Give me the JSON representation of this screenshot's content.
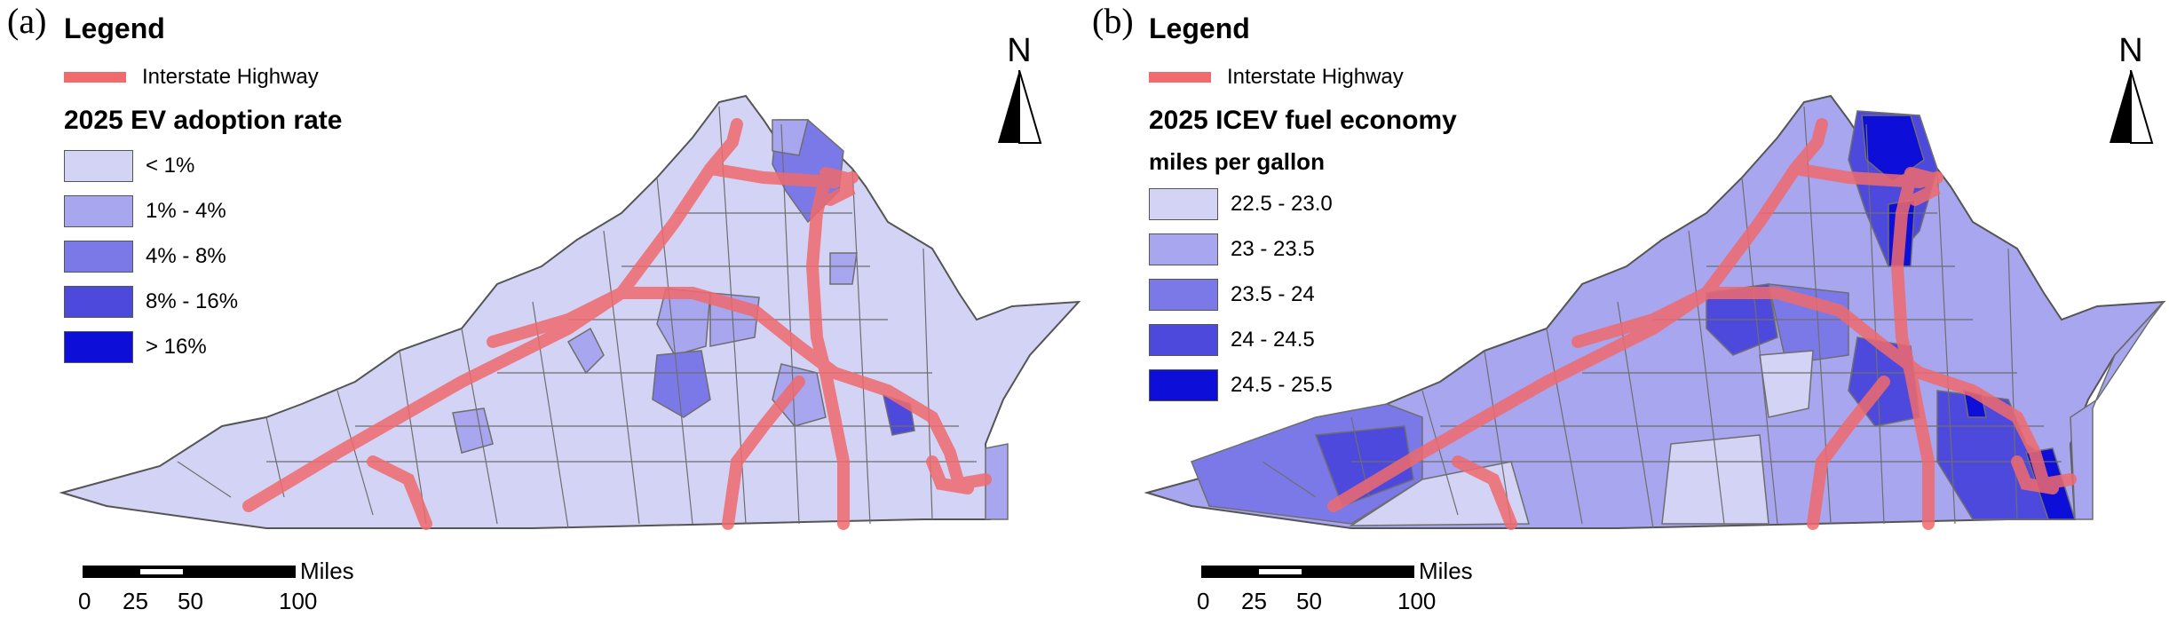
{
  "panels": [
    {
      "label": "(a)",
      "legend": {
        "title": "Legend",
        "highway_label": "Interstate Highway",
        "section_title": "2025 EV adoption rate",
        "subtitle": "",
        "classes": [
          {
            "label": "< 1%",
            "color": "#d3d3f6"
          },
          {
            "label": "1% - 4%",
            "color": "#a7a6ef"
          },
          {
            "label": "4% - 8%",
            "color": "#7b79e7"
          },
          {
            "label": "8% - 16%",
            "color": "#4e49dd"
          },
          {
            "label": "> 16%",
            "color": "#0d0ed8"
          }
        ]
      },
      "north_label": "N",
      "scale": {
        "unit": "Miles",
        "ticks": [
          "0",
          "25",
          "50",
          "100"
        ]
      }
    },
    {
      "label": "(b)",
      "legend": {
        "title": "Legend",
        "highway_label": "Interstate Highway",
        "section_title": "2025 ICEV fuel economy",
        "subtitle": "miles per gallon",
        "classes": [
          {
            "label": "22.5 - 23.0",
            "color": "#d3d3f6"
          },
          {
            "label": "23 - 23.5",
            "color": "#a7a6ef"
          },
          {
            "label": "23.5 - 24",
            "color": "#7b79e7"
          },
          {
            "label": "24 - 24.5",
            "color": "#4e49dd"
          },
          {
            "label": "24.5 - 25.5",
            "color": "#0d0ed8"
          }
        ]
      },
      "north_label": "N",
      "scale": {
        "unit": "Miles",
        "ticks": [
          "0",
          "25",
          "50",
          "100"
        ]
      }
    }
  ],
  "colors": {
    "highway": "#f06a6e",
    "state_outline": "#555555",
    "county_line": "#6e6e6e"
  }
}
